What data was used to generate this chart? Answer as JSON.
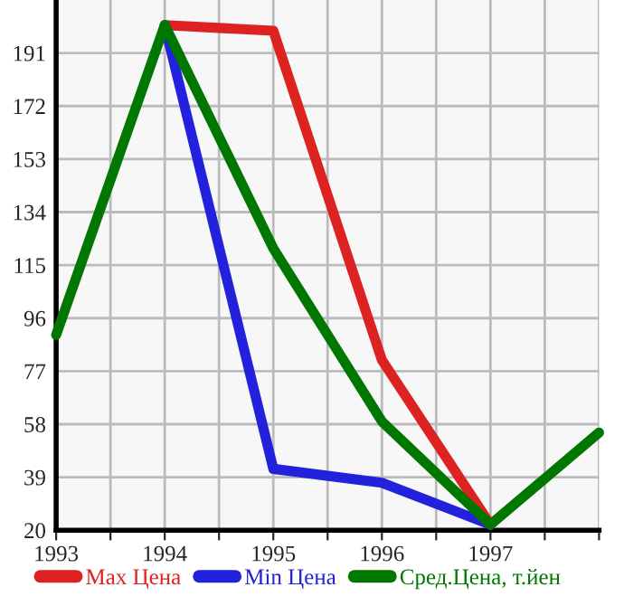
{
  "chart_data": {
    "type": "line",
    "xlim": [
      1993,
      1998
    ],
    "xticks": [
      1993,
      {
        "value": 1993.5,
        "label": null
      },
      1994,
      {
        "value": 1994.5,
        "label": null
      },
      1995,
      {
        "value": 1995.5,
        "label": null
      },
      1996,
      {
        "value": 1996.5,
        "label": null
      },
      1997,
      {
        "value": 1997.5,
        "label": null
      },
      {
        "value": 1998,
        "label": null
      }
    ],
    "ylim": [
      20,
      210
    ],
    "yticks": [
      20,
      39,
      58,
      77,
      96,
      115,
      134,
      153,
      172,
      191
    ],
    "grid": true,
    "legend": "bottom",
    "marker": "none",
    "line_style": "solid",
    "series": [
      {
        "name": "Max Цена",
        "color": "#dd2222",
        "x": [
          1994,
          1995,
          1996,
          1997
        ],
        "values": [
          201,
          199,
          81,
          22
        ]
      },
      {
        "name": "Min Цена",
        "color": "#2222dd",
        "x": [
          1994,
          1995,
          1996,
          1997
        ],
        "values": [
          201,
          42,
          37,
          22
        ]
      },
      {
        "name": "Сред.Цена, т.йен",
        "color": "#007700",
        "x": [
          1993,
          1994,
          1995,
          1996,
          1997,
          1998
        ],
        "values": [
          90,
          201,
          121,
          59,
          22,
          55
        ]
      }
    ]
  }
}
